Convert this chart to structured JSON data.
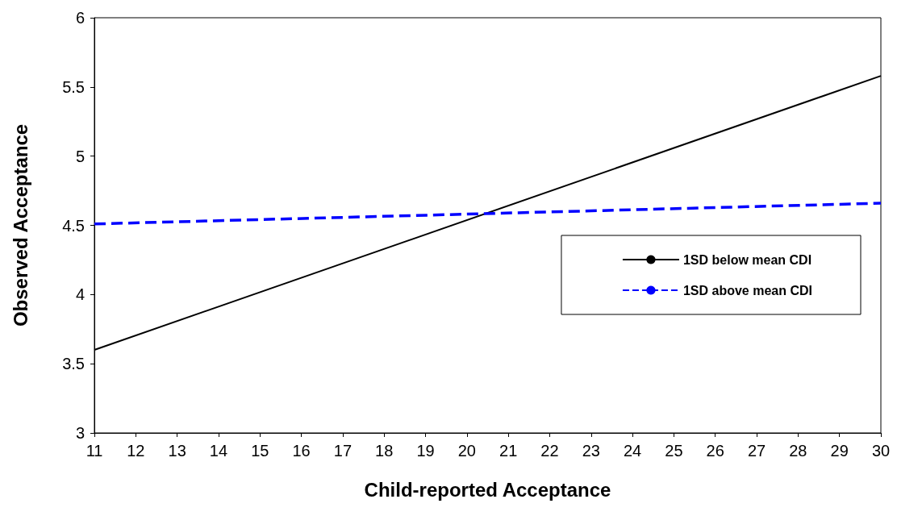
{
  "chart_data": {
    "type": "line",
    "xlabel": "Child-reported Acceptance",
    "ylabel": "Observed Acceptance",
    "x": [
      11,
      30
    ],
    "series": [
      {
        "name": "1SD below mean CDI",
        "color": "#000000",
        "line_style": "solid",
        "values": [
          3.6,
          5.58
        ]
      },
      {
        "name": "1SD above mean CDI",
        "color": "#0000ff",
        "line_style": "dashed",
        "values": [
          4.51,
          4.66
        ]
      }
    ],
    "xlim": [
      11,
      30
    ],
    "xticks": [
      11,
      12,
      13,
      14,
      15,
      16,
      17,
      18,
      19,
      20,
      21,
      22,
      23,
      24,
      25,
      26,
      27,
      28,
      29,
      30
    ],
    "ylim": [
      3,
      6
    ],
    "yticks": [
      3,
      3.5,
      4,
      4.5,
      5,
      5.5,
      6
    ],
    "grid": false,
    "legend": "right",
    "marker": "none"
  }
}
